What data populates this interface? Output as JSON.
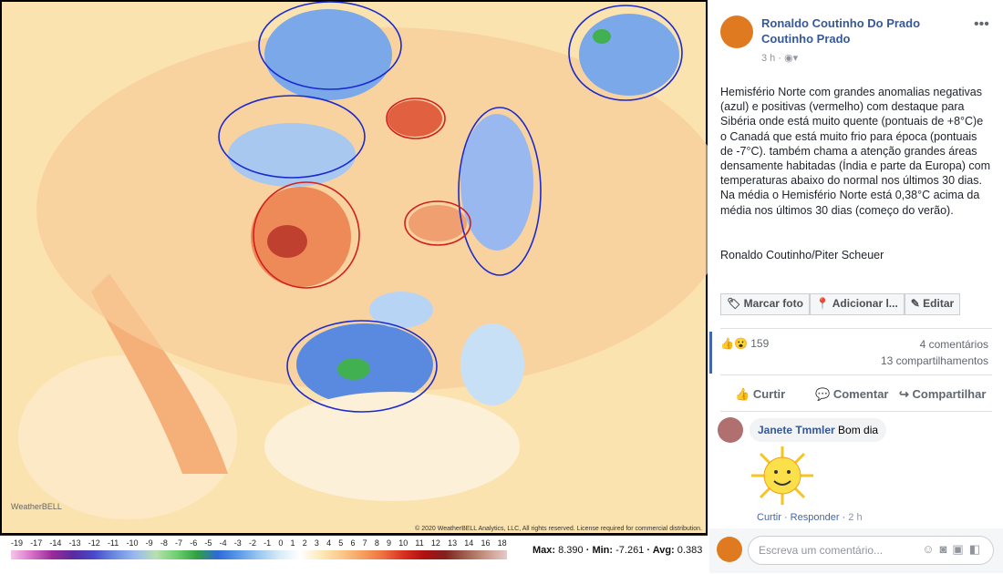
{
  "map": {
    "copyright": "© 2020 WeatherBELL Analytics, LLC, All rights reserved. License required for commercial distribution.",
    "logo": "WeatherBELL",
    "scale_labels": [
      "-19",
      "-17",
      "-14",
      "-13",
      "-12",
      "-11",
      "-10",
      "-9",
      "-8",
      "-7",
      "-6",
      "-5",
      "-4",
      "-3",
      "-2",
      "-1",
      "0",
      "1",
      "2",
      "3",
      "4",
      "5",
      "6",
      "7",
      "8",
      "9",
      "10",
      "11",
      "12",
      "13",
      "14",
      "16",
      "18"
    ],
    "stats": {
      "max_label": "Max:",
      "max": "8.390",
      "min_label": "Min:",
      "min": "-7.261",
      "avg_label": "Avg:",
      "avg": "0.383"
    }
  },
  "post": {
    "author": "Ronaldo Coutinho Do Prado",
    "author_line2": "Coutinho Prado",
    "time": "3 h",
    "body": "Hemisfério Norte com grandes anomalias negativas (azul) e positivas (vermelho) com destaque para Sibéria onde está muito quente (pontuais de +8°C)e o Canadá que está muito frio para época (pontuais de -7°C). também chama a atenção grandes áreas densamente habitadas (Índia e parte da Europa) com temperaturas abaixo do normal nos últimos 30 dias. Na média o Hemisfério Norte está 0,38°C acima da média nos últimos 30 dias (começo do verão).",
    "signature": "Ronaldo Coutinho/Piter Scheuer",
    "photo_actions": [
      "Marcar foto",
      "Adicionar l...",
      "Editar"
    ],
    "reactions": "159",
    "comments_count": "4 comentários",
    "shares_count": "13 compartilhamentos",
    "actions": [
      "Curtir",
      "Comentar",
      "Compartilhar"
    ],
    "comment": {
      "author": "Janete Tmmler",
      "text": "Bom dia",
      "like": "Curtir",
      "reply": "Responder",
      "time": "2 h"
    },
    "input_placeholder": "Escreva um comentário..."
  }
}
